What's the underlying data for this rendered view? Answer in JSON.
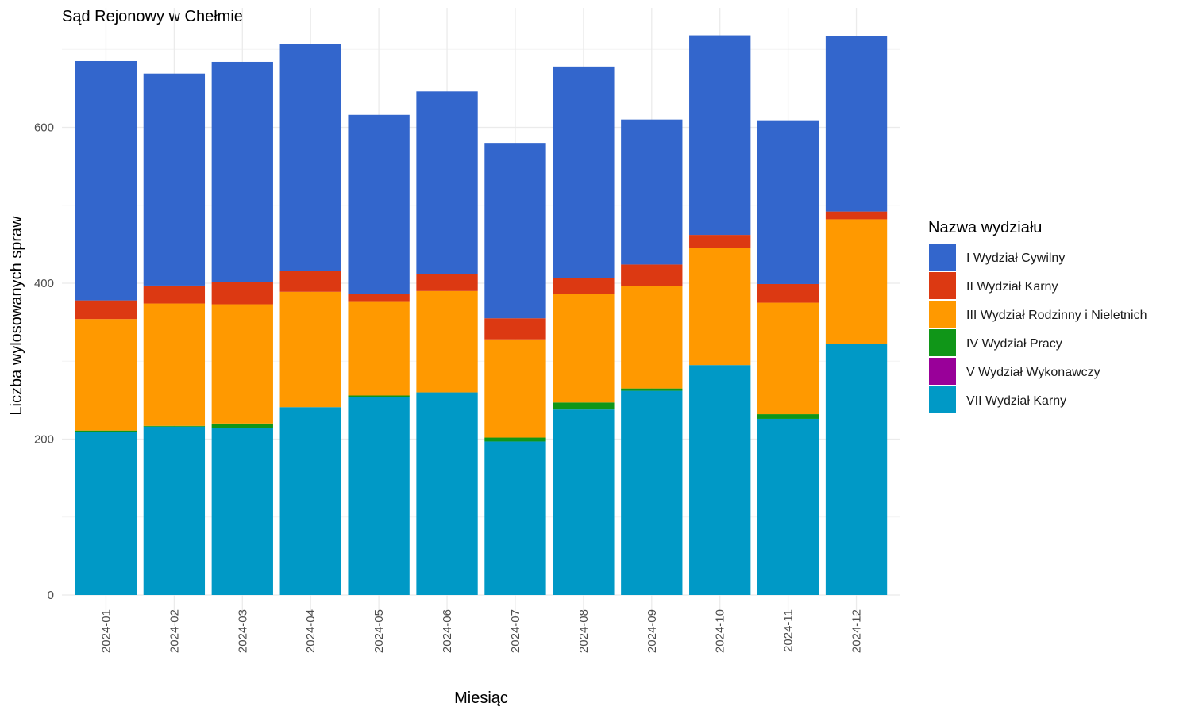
{
  "chart_data": {
    "type": "bar",
    "stacked": true,
    "title": "Sąd Rejonowy w Chełmie",
    "xlabel": "Miesiąc",
    "ylabel": "Liczba wylosowanych spraw",
    "ylim": [
      0,
      750
    ],
    "yticks": [
      "0",
      "200",
      "400",
      "600"
    ],
    "grid": true,
    "legend_position": "right",
    "legend_title": "Nazwa wydziału",
    "categories": [
      "2024-01",
      "2024-02",
      "2024-03",
      "2024-04",
      "2024-05",
      "2024-06",
      "2024-07",
      "2024-08",
      "2024-09",
      "2024-10",
      "2024-11",
      "2024-12"
    ],
    "series": [
      {
        "name": "I Wydział Cywilny",
        "color": "#3366cc",
        "values": [
          307,
          272,
          282,
          291,
          230,
          234,
          225,
          271,
          186,
          256,
          210,
          225
        ]
      },
      {
        "name": "II Wydział Karny",
        "color": "#dc3912",
        "values": [
          24,
          23,
          29,
          27,
          10,
          22,
          27,
          21,
          28,
          17,
          24,
          10
        ]
      },
      {
        "name": "III Wydział Rodzinny i Nieletnich",
        "color": "#ff9900",
        "values": [
          143,
          157,
          153,
          148,
          120,
          130,
          126,
          139,
          131,
          150,
          143,
          160
        ]
      },
      {
        "name": "IV Wydział Pracy",
        "color": "#109618",
        "values": [
          2,
          1,
          6,
          0,
          2,
          0,
          5,
          9,
          3,
          0,
          6,
          0
        ]
      },
      {
        "name": "V Wydział Wykonawczy",
        "color": "#990099",
        "values": [
          0,
          0,
          0,
          0,
          0,
          0,
          0,
          0,
          0,
          0,
          0,
          0
        ]
      },
      {
        "name": "VII Wydział Karny",
        "color": "#0099c6",
        "values": [
          209,
          216,
          214,
          241,
          254,
          260,
          197,
          238,
          262,
          295,
          226,
          322
        ]
      }
    ]
  }
}
